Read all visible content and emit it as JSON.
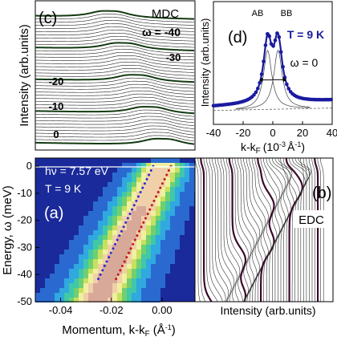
{
  "chart_data": [
    {
      "panel": "(c)",
      "type": "line",
      "label": "MDC",
      "ylabel": "Intensity (arb.units)",
      "omega_label": "ω = -40",
      "omega_ticks": [
        "-30",
        "-20",
        "-10",
        "0"
      ],
      "series_count": 41,
      "omega_range": [
        -40,
        0
      ],
      "grid": false
    },
    {
      "panel": "(d)",
      "type": "scatter",
      "peak_labels": [
        "AB",
        "BB"
      ],
      "temperature": "T = 9 K",
      "omega": "ω = 0",
      "xlabel": "k-k",
      "xlabel_sub": "F",
      "xlabel_unit": "(10",
      "xlabel_unit_exp": "-3",
      "xlabel_unit_tail": "Å",
      "xlabel_unit_tail_exp": "-1",
      "xlabel_close": ")",
      "ylabel": "Intensity (arb.units)",
      "xlim": [
        -40,
        40
      ],
      "xticks": [
        "-40",
        "-20",
        "0",
        "20",
        "40"
      ],
      "peaks": [
        {
          "name": "AB",
          "center": -3.5,
          "width": 3.4,
          "height": 1.0
        },
        {
          "name": "BB",
          "center": 3.5,
          "width": 3.4,
          "height": 1.0
        }
      ],
      "background_slope": 0.25,
      "colors": {
        "data": "#1a1aa0",
        "fit": "#555555"
      }
    },
    {
      "panel": "(a)",
      "type": "heatmap",
      "photon_energy": "hν = 7.57 eV",
      "temperature": "T = 9 K",
      "xlabel": "Momentum, k-k",
      "xlabel_sub": "F",
      "xlabel_unit": "(Å",
      "xlabel_unit_exp": "-1",
      "xlabel_close": ")",
      "ylabel": "Energy, ω  (meV)",
      "xlim": [
        -0.05,
        0.013
      ],
      "ylim": [
        -50,
        3
      ],
      "xticks": [
        "-0.04",
        "-0.02",
        "0.00"
      ],
      "xtick_values": [
        -0.04,
        -0.02,
        0.0
      ],
      "yticks": [
        "0",
        "-10",
        "-20",
        "-30",
        "-40",
        "-50"
      ],
      "ytick_values": [
        0,
        -10,
        -20,
        -30,
        -40,
        -50
      ],
      "bands": [
        {
          "name": "AB",
          "k_at_0": -0.0035,
          "velocity_k_per_meV": 0.00052,
          "color": "#2b2bd0"
        },
        {
          "name": "BB",
          "k_at_0": 0.0035,
          "velocity_k_per_meV": 0.00052,
          "color": "#c01818"
        }
      ],
      "colormap": [
        "#1a2a9a",
        "#2a6ad0",
        "#30a8e0",
        "#40c8a8",
        "#70d070",
        "#c8e060",
        "#f0f0a0",
        "#f0d0a8",
        "#d8a898",
        "#b08878"
      ]
    },
    {
      "panel": "(b)",
      "type": "line",
      "label": "EDC",
      "xlabel": "Intensity (arb.units)",
      "series_count": 45,
      "ylim": [
        -50,
        3
      ],
      "grid": false
    }
  ]
}
